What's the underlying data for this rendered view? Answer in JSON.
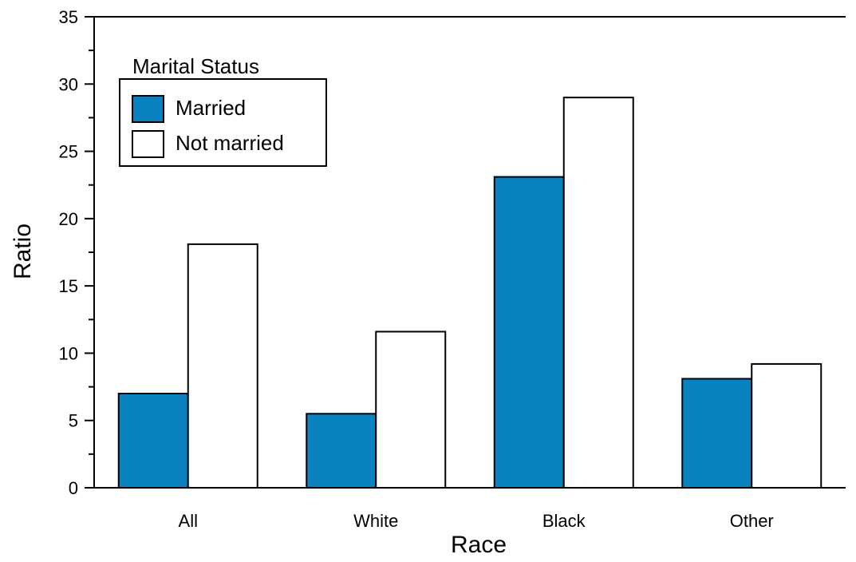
{
  "chart_data": {
    "type": "bar",
    "title": "",
    "xlabel": "Race",
    "ylabel": "Ratio",
    "categories": [
      "All",
      "White",
      "Black",
      "Other"
    ],
    "series": [
      {
        "name": "Married",
        "values": [
          7.0,
          5.5,
          23.1,
          8.1
        ],
        "color": "#0a82c0"
      },
      {
        "name": "Not married",
        "values": [
          18.1,
          11.6,
          29.0,
          9.2
        ],
        "color": "#ffffff"
      }
    ],
    "ylim": [
      0,
      35
    ],
    "yticks": [
      0,
      5,
      10,
      15,
      20,
      25,
      30,
      35
    ],
    "y_minor_step": 2.5,
    "grid": false,
    "legend": {
      "title": "Marital Status",
      "placement": "top-left"
    }
  }
}
